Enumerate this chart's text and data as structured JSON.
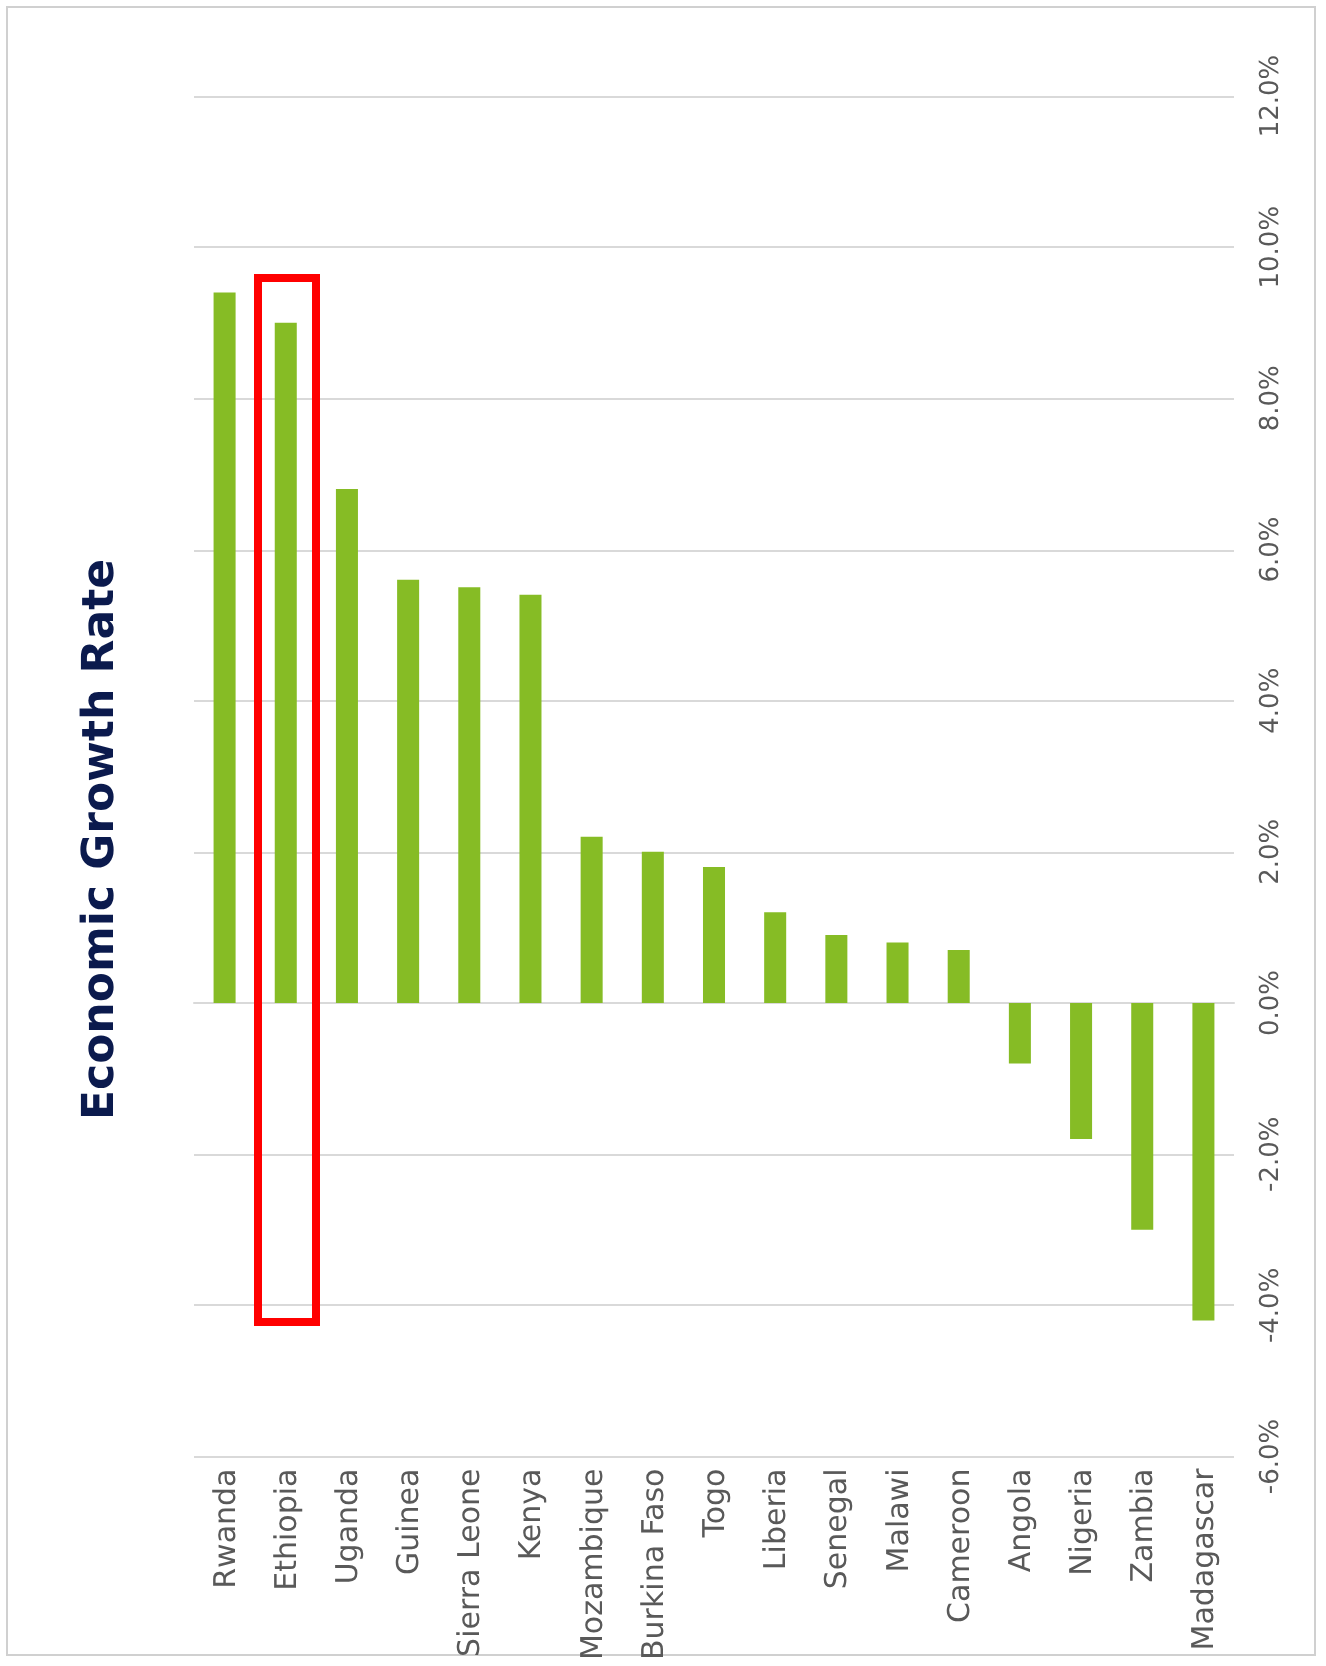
{
  "chart_data": {
    "type": "bar",
    "title": "Economic Growth Rate",
    "categories": [
      "Rwanda",
      "Ethiopia",
      "Uganda",
      "Guinea",
      "Sierra Leone",
      "Kenya",
      "Mozambique",
      "Burkina Faso",
      "Togo",
      "Liberia",
      "Senegal",
      "Malawi",
      "Cameroon",
      "Angola",
      "Nigeria",
      "Zambia",
      "Madagascar"
    ],
    "values": [
      9.4,
      9.0,
      6.8,
      5.6,
      5.5,
      5.4,
      2.2,
      2.0,
      1.8,
      1.2,
      0.9,
      0.8,
      0.7,
      -0.8,
      -1.8,
      -3.0,
      -4.2
    ],
    "color": "#86bc25",
    "ylim": [
      -6,
      12
    ],
    "yticks": [
      {
        "value": -6,
        "label": "-6.0%"
      },
      {
        "value": -4,
        "label": "-4.0%"
      },
      {
        "value": -2,
        "label": "-2.0%"
      },
      {
        "value": 0,
        "label": "0.0%"
      },
      {
        "value": 2,
        "label": "2.0%"
      },
      {
        "value": 4,
        "label": "4.0%"
      },
      {
        "value": 6,
        "label": "6.0%"
      },
      {
        "value": 8,
        "label": "8.0%"
      },
      {
        "value": 10,
        "label": "10.0%"
      },
      {
        "value": 12,
        "label": "12.0%"
      }
    ],
    "grid": true
  }
}
